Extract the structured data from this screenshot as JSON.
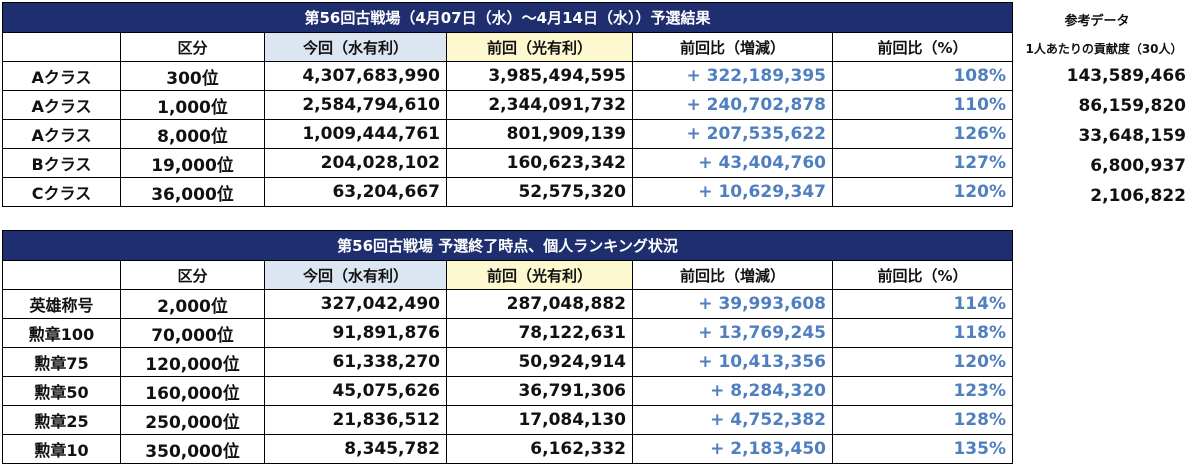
{
  "table1": {
    "title": "第56回古戦場（4月07日（水）～4月14日（水））予選結果",
    "headers": [
      "",
      "区分",
      "今回（水有利）",
      "前回（光有利）",
      "前回比（増減）",
      "前回比（%）"
    ],
    "rows": [
      {
        "cls": "Aクラス",
        "rank": "300位",
        "cur": "4,307,683,990",
        "prev": "3,985,494,595",
        "diff": "+ 322,189,395",
        "pct": "108%"
      },
      {
        "cls": "Aクラス",
        "rank": "1,000位",
        "cur": "2,584,794,610",
        "prev": "2,344,091,732",
        "diff": "+ 240,702,878",
        "pct": "110%"
      },
      {
        "cls": "Aクラス",
        "rank": "8,000位",
        "cur": "1,009,444,761",
        "prev": "801,909,139",
        "diff": "+ 207,535,622",
        "pct": "126%"
      },
      {
        "cls": "Bクラス",
        "rank": "19,000位",
        "cur": "204,028,102",
        "prev": "160,623,342",
        "diff": "+ 43,404,760",
        "pct": "127%"
      },
      {
        "cls": "Cクラス",
        "rank": "36,000位",
        "cur": "63,204,667",
        "prev": "52,575,320",
        "diff": "+ 10,629,347",
        "pct": "120%"
      }
    ]
  },
  "reference": {
    "title": "参考データ",
    "subtitle": "1人あたりの貢献度（30人）",
    "values": [
      "143,589,466",
      "86,159,820",
      "33,648,159",
      "6,800,937",
      "2,106,822"
    ]
  },
  "table2": {
    "title": "第56回古戦場 予選終了時点、個人ランキング状況",
    "headers": [
      "",
      "区分",
      "今回（水有利）",
      "前回（光有利）",
      "前回比（増減）",
      "前回比（%）"
    ],
    "rows": [
      {
        "cls": "英雄称号",
        "rank": "2,000位",
        "cur": "327,042,490",
        "prev": "287,048,882",
        "diff": "+ 39,993,608",
        "pct": "114%"
      },
      {
        "cls": "勲章100",
        "rank": "70,000位",
        "cur": "91,891,876",
        "prev": "78,122,631",
        "diff": "+ 13,769,245",
        "pct": "118%"
      },
      {
        "cls": "勲章75",
        "rank": "120,000位",
        "cur": "61,338,270",
        "prev": "50,924,914",
        "diff": "+ 10,413,356",
        "pct": "120%"
      },
      {
        "cls": "勲章50",
        "rank": "160,000位",
        "cur": "45,075,626",
        "prev": "36,791,306",
        "diff": "+ 8,284,320",
        "pct": "123%"
      },
      {
        "cls": "勲章25",
        "rank": "250,000位",
        "cur": "21,836,512",
        "prev": "17,084,130",
        "diff": "+ 4,752,382",
        "pct": "128%"
      },
      {
        "cls": "勲章10",
        "rank": "350,000位",
        "cur": "8,345,782",
        "prev": "6,162,332",
        "diff": "+ 2,183,450",
        "pct": "135%"
      }
    ]
  }
}
